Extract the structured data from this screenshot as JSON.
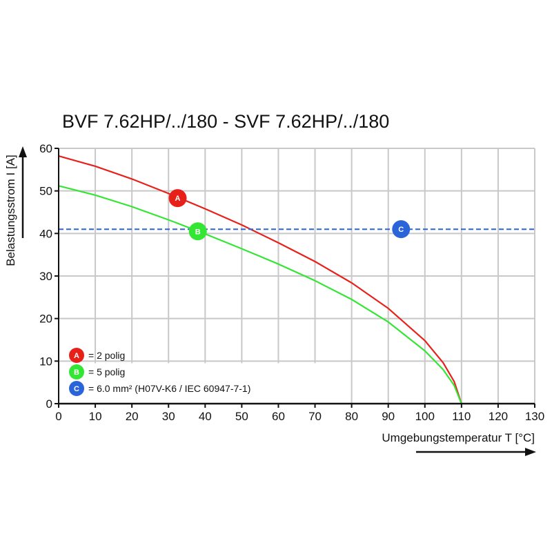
{
  "chart_data": {
    "type": "line",
    "title": "BVF 7.62HP/../180 - SVF 7.62HP/../180",
    "xlabel": "Umgebungstemperatur T [°C]",
    "ylabel": "Belastungsstrom I [A]",
    "xlim": [
      0,
      130
    ],
    "ylim": [
      0,
      60
    ],
    "x_ticks": [
      "0",
      "10",
      "20",
      "30",
      "40",
      "50",
      "60",
      "70",
      "80",
      "90",
      "100",
      "110",
      "120",
      "130"
    ],
    "y_ticks": [
      "0",
      "10",
      "20",
      "30",
      "40",
      "50",
      "60"
    ],
    "grid": true,
    "series": [
      {
        "marker": "A",
        "color": "#e8201a",
        "x": [
          0,
          10,
          20,
          30,
          40,
          50,
          60,
          70,
          80,
          90,
          100,
          105,
          108,
          110
        ],
        "y": [
          58.2,
          55.8,
          52.8,
          49.4,
          45.8,
          42.0,
          37.8,
          33.4,
          28.4,
          22.4,
          14.8,
          9.6,
          5.2,
          0
        ]
      },
      {
        "marker": "B",
        "color": "#33e633",
        "x": [
          0,
          10,
          20,
          30,
          40,
          50,
          60,
          70,
          80,
          90,
          100,
          105,
          108,
          110
        ],
        "y": [
          51.2,
          49.0,
          46.3,
          43.2,
          39.9,
          36.4,
          32.8,
          28.9,
          24.5,
          19.2,
          12.4,
          8.0,
          4.3,
          0
        ]
      },
      {
        "marker": "C",
        "color": "#2a64d8",
        "dashed": true,
        "x": [
          0,
          130
        ],
        "y": [
          41,
          41
        ]
      }
    ],
    "markers": [
      {
        "letter": "A",
        "x": 32.5,
        "y": 48.3,
        "color": "#e8201a"
      },
      {
        "letter": "B",
        "x": 38,
        "y": 40.5,
        "color": "#33e633"
      },
      {
        "letter": "C",
        "x": 93.5,
        "y": 41,
        "color": "#2a64d8"
      }
    ],
    "legend": {
      "placement": "bottom-left",
      "entries": [
        {
          "letter": "A",
          "color": "#e8201a",
          "text": "= 2 polig"
        },
        {
          "letter": "B",
          "color": "#33e633",
          "text": "= 5 polig"
        },
        {
          "letter": "C",
          "color": "#2a64d8",
          "text": "= 6.0 mm² (H07V-K6 / IEC 60947-7-1)"
        }
      ]
    }
  }
}
